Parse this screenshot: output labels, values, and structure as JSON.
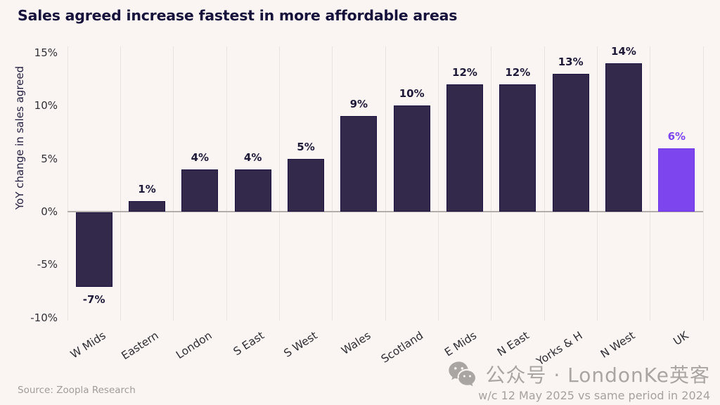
{
  "title": "Sales agreed increase fastest in more affordable areas",
  "chart_data": {
    "type": "bar",
    "title": "Sales agreed increase fastest in more affordable areas",
    "xlabel": "",
    "ylabel": "YoY change in sales agreed",
    "ylim": [
      -10,
      15
    ],
    "yticks": [
      15,
      10,
      5,
      0,
      -5,
      -10
    ],
    "ytick_suffix": "%",
    "grid": "vertical category separators only",
    "legend": "none",
    "categories": [
      "W Mids",
      "Eastern",
      "London",
      "S East",
      "S West",
      "Wales",
      "Scotland",
      "E Mids",
      "N East",
      "Yorks & H",
      "N West",
      "UK"
    ],
    "values": [
      -7,
      1,
      4,
      4,
      5,
      9,
      10,
      12,
      12,
      13,
      14,
      6
    ],
    "value_labels": [
      "-7%",
      "1%",
      "4%",
      "4%",
      "5%",
      "9%",
      "10%",
      "12%",
      "12%",
      "13%",
      "14%",
      "6%"
    ],
    "highlight_category": "UK",
    "bar_color": "#332A4B",
    "bar_border_color": "#1B1240",
    "highlight_color": "#7C45EE",
    "highlight_border_color": "#6E34E6",
    "label_color": "#1E1A38",
    "highlight_label_color": "#7C45EE"
  },
  "source": {
    "label": "Source: Zoopla Research"
  },
  "watermark": {
    "icon": "wechat-icon",
    "text": "公众号 · LondonKe英客",
    "subtext": "w/c 12 May 2025 vs same period in 2024",
    "color": "#A9A5A2"
  },
  "colors": {
    "background": "#FAF5F2",
    "title_text": "#17123B",
    "axis_text": "#302F36",
    "gridline": "#E7E3E0",
    "zero_line": "#B3AEAB",
    "source_text": "#A09C99"
  }
}
